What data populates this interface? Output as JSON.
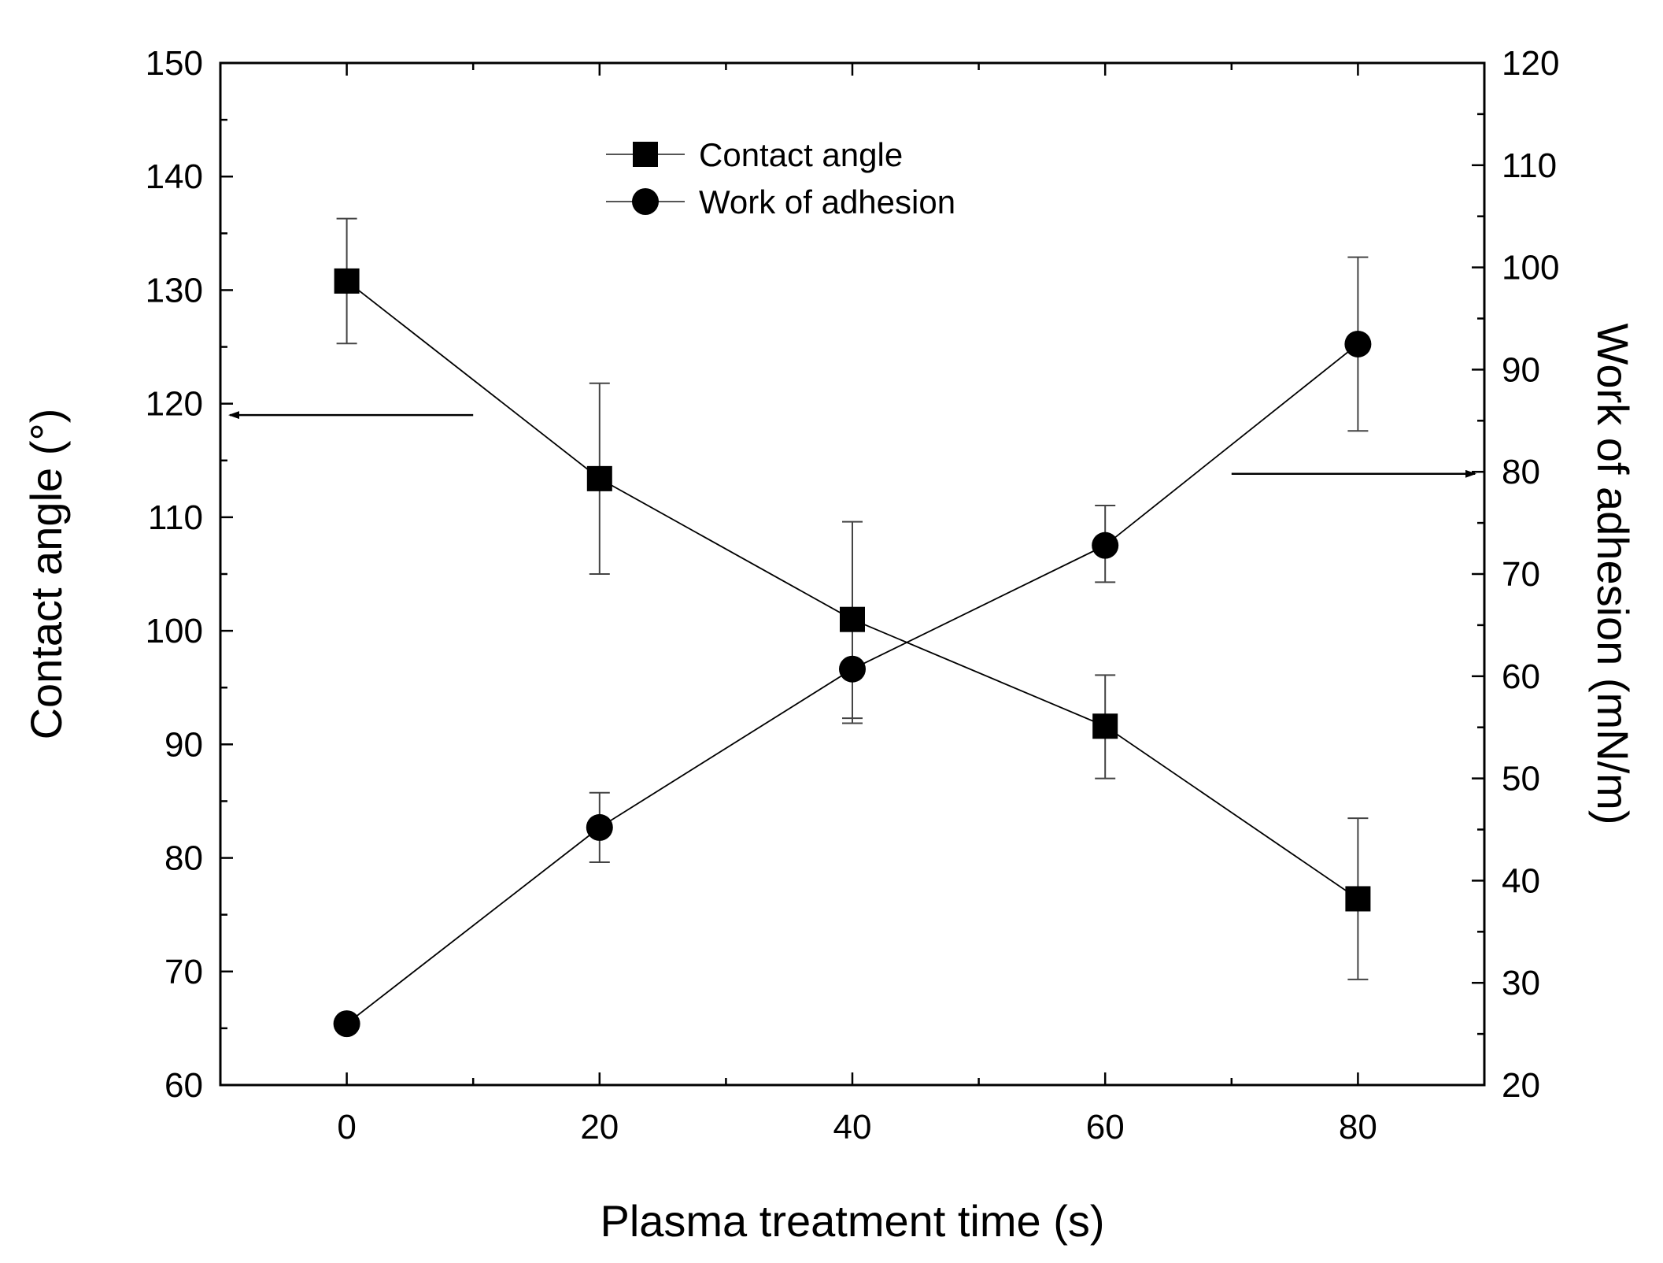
{
  "chart_data": {
    "type": "line",
    "title": "",
    "xlabel": "Plasma treatment time (s)",
    "ylabel": "Contact angle (°)",
    "y2label": "Work of adhesion (mN/m)",
    "xlim": [
      -10,
      90
    ],
    "ylim": [
      60,
      150
    ],
    "y2lim": [
      20,
      120
    ],
    "x_ticks": [
      0,
      20,
      40,
      60,
      80
    ],
    "y_ticks": [
      60,
      70,
      80,
      90,
      100,
      110,
      120,
      130,
      140,
      150
    ],
    "y2_ticks": [
      20,
      30,
      40,
      50,
      60,
      70,
      80,
      90,
      100,
      110,
      120
    ],
    "legend_position": "top-center",
    "grid": false,
    "series": [
      {
        "name": "Contact angle",
        "axis": "left",
        "marker": "square",
        "color": "#000000",
        "x": [
          0,
          20,
          40,
          60,
          80
        ],
        "y": [
          130.8,
          113.4,
          101.0,
          91.6,
          76.4
        ],
        "err_low": [
          125.3,
          105.0,
          92.3,
          87.0,
          69.3
        ],
        "err_high": [
          136.3,
          121.8,
          109.6,
          96.1,
          83.5
        ]
      },
      {
        "name": "Work of adhesion",
        "axis": "right",
        "marker": "circle",
        "color": "#000000",
        "x": [
          0,
          20,
          40,
          60,
          80
        ],
        "y": [
          26.0,
          45.2,
          60.7,
          72.8,
          92.5
        ],
        "err_low": null,
        "err_high": [
          null,
          48.6,
          null,
          76.7,
          101.0
        ],
        "err_low_vals": [
          null,
          41.8,
          55.4,
          69.2,
          84.0
        ]
      }
    ],
    "annotations": [
      {
        "type": "arrow",
        "direction": "left",
        "points_to": "left-axis",
        "x_from": 10,
        "y": 119
      },
      {
        "type": "arrow",
        "direction": "right",
        "points_to": "right-axis",
        "x_from": 70,
        "y2": 79.8
      }
    ]
  }
}
